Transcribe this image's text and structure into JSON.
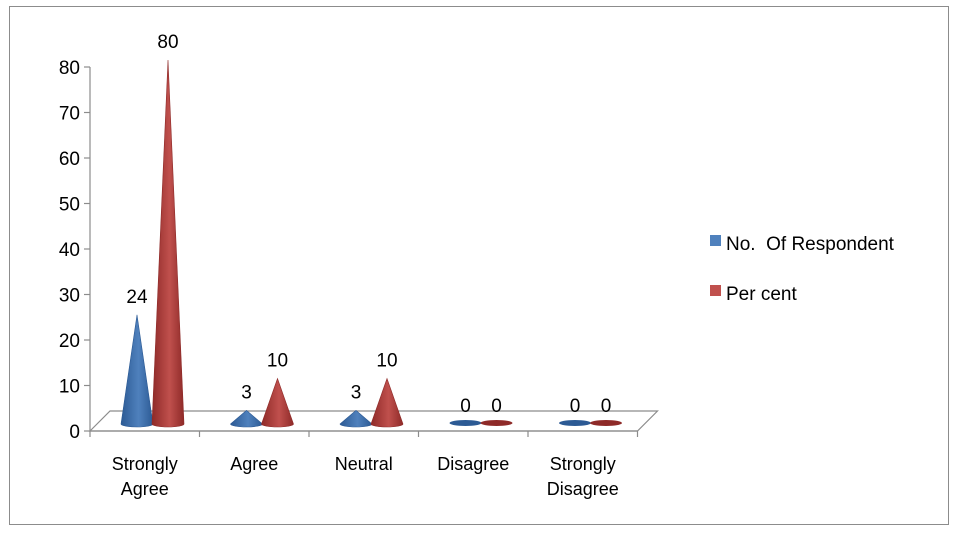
{
  "chart_data": {
    "type": "bar",
    "bar_shape": "cone-3d",
    "title": "",
    "xlabel": "",
    "ylabel": "",
    "categories": [
      [
        "Strongly",
        "Agree"
      ],
      [
        "Agree"
      ],
      [
        "Neutral"
      ],
      [
        "Disagree"
      ],
      [
        "Strongly",
        "Disagree"
      ]
    ],
    "series": [
      {
        "name": "No.  Of Respondent",
        "values": [
          24,
          3,
          3,
          0,
          0
        ],
        "color": "#4f81bd",
        "shade": "#2c5a94"
      },
      {
        "name": "Per cent",
        "values": [
          80,
          10,
          10,
          0,
          0
        ],
        "color": "#c0504d",
        "shade": "#8e2a28"
      }
    ],
    "ylim": [
      0,
      80
    ],
    "yticks": [
      "0",
      "10",
      "20",
      "30",
      "40",
      "50",
      "60",
      "70",
      "80"
    ],
    "grid": false,
    "legend_position": "right",
    "data_labels": true
  }
}
